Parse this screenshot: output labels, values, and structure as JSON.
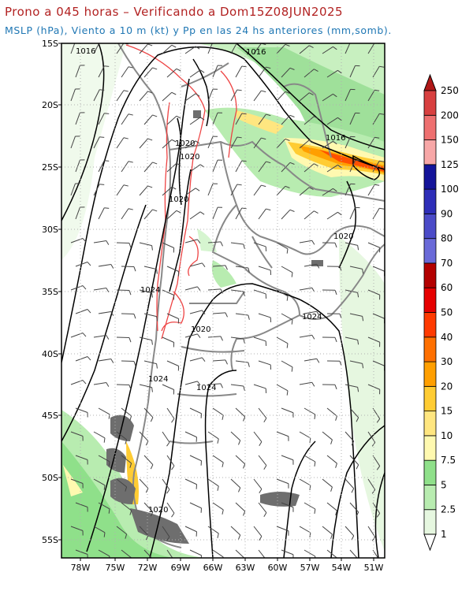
{
  "title_line1": "Prono a 045 horas – Verificando a Dom15Z08JUN2025",
  "title_line2": "MSLP (hPa), Viento a 10 m (kt) y Pp en las 24 hs anteriores (mm,somb).",
  "lat_labels": [
    "15S",
    "20S",
    "25S",
    "30S",
    "35S",
    "40S",
    "45S",
    "50S",
    "55S"
  ],
  "lon_labels": [
    "78W",
    "75W",
    "72W",
    "69W",
    "66W",
    "63W",
    "60W",
    "57W",
    "54W",
    "51W"
  ],
  "isobar_labels": [
    "1016",
    "1016",
    "1020",
    "1016",
    "1020",
    "1020",
    "1020",
    "1024",
    "1024",
    "1020",
    "1024",
    "1024",
    "1020"
  ],
  "colorbar": {
    "levels": [
      "1",
      "2.5",
      "5",
      "7.5",
      "10",
      "15",
      "20",
      "30",
      "40",
      "50",
      "60",
      "70",
      "80",
      "90",
      "100",
      "125",
      "150",
      "200",
      "250"
    ],
    "colors": [
      "#ffffff",
      "#e6f7e0",
      "#b8ecb0",
      "#8fe08a",
      "#fff9b0",
      "#ffe680",
      "#ffcc33",
      "#ff9f00",
      "#ff7000",
      "#ff3a00",
      "#e60000",
      "#b30000",
      "#6a6ad8",
      "#4b4bc8",
      "#2e2eb8",
      "#14149a",
      "#f7a7a7",
      "#ee7070",
      "#d84040",
      "#b01818"
    ]
  },
  "chart_data": {
    "type": "map",
    "region": "South America (15S-56S, 79W-50W)",
    "variables": [
      "MSLP (hPa)",
      "Viento a 10 m (kt)",
      "Pp en las 24 hs anteriores (mm)"
    ],
    "isobars_hpa": [
      1016,
      1020,
      1024
    ],
    "max_precip_area": "25S 54W-51W, 40-60 mm"
  }
}
